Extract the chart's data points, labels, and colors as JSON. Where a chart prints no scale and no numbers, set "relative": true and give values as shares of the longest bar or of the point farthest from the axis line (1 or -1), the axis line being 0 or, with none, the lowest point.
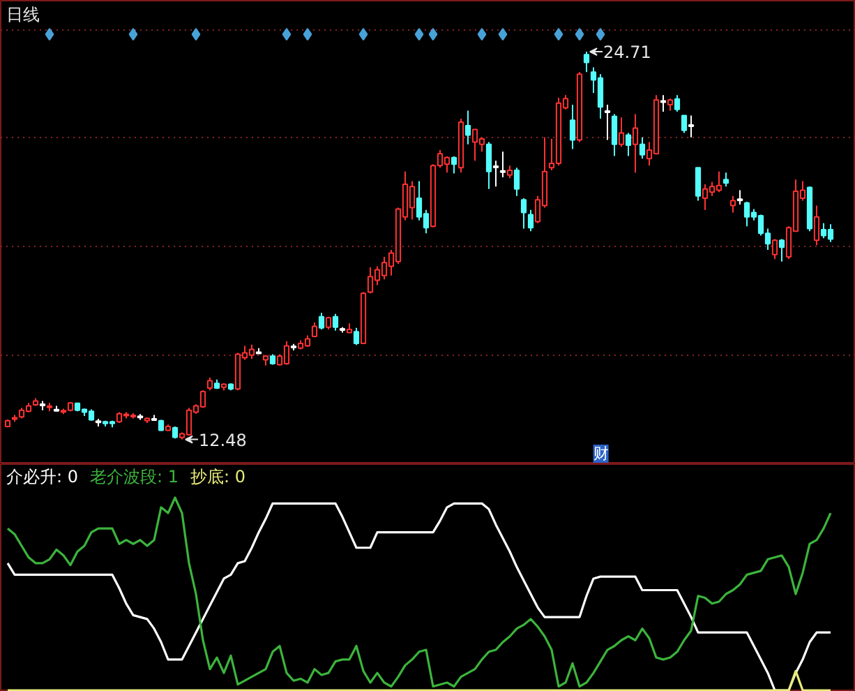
{
  "chart_data": [
    {
      "type": "candlestick",
      "title": "日线",
      "categories": [
        null,
        null,
        null,
        null,
        null,
        null,
        null,
        null,
        null,
        null,
        null,
        null,
        null,
        null,
        null,
        null,
        null,
        null,
        null,
        null,
        null,
        null,
        null,
        null,
        null,
        null,
        null,
        null,
        null,
        null,
        null,
        null,
        null,
        null,
        null,
        null,
        null,
        null,
        null,
        null,
        null,
        null,
        null,
        null,
        null,
        null,
        null,
        null,
        null,
        null,
        null,
        null,
        null,
        null,
        null,
        null,
        null,
        null,
        null,
        null,
        null,
        null,
        null,
        null,
        null,
        null,
        null,
        null,
        null,
        null,
        null,
        null,
        null,
        null,
        null,
        null,
        null,
        null,
        null,
        null,
        null,
        null,
        null,
        null,
        null,
        null,
        null,
        null,
        null,
        null,
        null,
        null,
        null,
        null,
        null,
        null,
        null,
        null,
        null,
        null,
        null,
        null,
        null,
        null,
        null,
        null,
        null,
        null,
        null,
        null,
        null,
        null,
        null,
        null,
        null,
        null,
        null,
        null,
        null
      ],
      "ohlc": [
        [
          12.89,
          13.11,
          12.86,
          13.07
        ],
        [
          13.14,
          13.25,
          13.04,
          13.14
        ],
        [
          13.19,
          13.48,
          13.14,
          13.4
        ],
        [
          13.37,
          13.63,
          13.34,
          13.54
        ],
        [
          13.57,
          13.78,
          13.54,
          13.69
        ],
        [
          13.57,
          13.69,
          13.4,
          13.57
        ],
        [
          13.51,
          13.63,
          13.37,
          13.51
        ],
        [
          13.4,
          13.54,
          13.37,
          13.4
        ],
        [
          13.37,
          13.45,
          13.28,
          13.37
        ],
        [
          13.4,
          13.66,
          13.37,
          13.63
        ],
        [
          13.62,
          13.63,
          13.37,
          13.4
        ],
        [
          13.43,
          13.45,
          13.22,
          13.34
        ],
        [
          13.37,
          13.43,
          13.07,
          13.1
        ],
        [
          13.04,
          13.13,
          12.89,
          13.04
        ],
        [
          13.04,
          13.07,
          12.89,
          12.98
        ],
        [
          13.04,
          13.07,
          12.86,
          12.98
        ],
        [
          13.04,
          13.34,
          13.0,
          13.29
        ],
        [
          13.25,
          13.34,
          13.14,
          13.25
        ],
        [
          13.22,
          13.31,
          13.14,
          13.22
        ],
        [
          13.19,
          13.28,
          13.1,
          13.19
        ],
        [
          13.07,
          13.17,
          13.0,
          13.14
        ],
        [
          13.11,
          13.25,
          13.1,
          13.11
        ],
        [
          13.07,
          13.1,
          12.75,
          12.77
        ],
        [
          12.77,
          12.95,
          12.75,
          12.89
        ],
        [
          12.85,
          12.89,
          12.51,
          12.55
        ],
        [
          12.54,
          12.7,
          12.48,
          12.66
        ],
        [
          12.63,
          13.48,
          12.6,
          13.4
        ],
        [
          13.34,
          13.59,
          13.29,
          13.54
        ],
        [
          13.51,
          14.03,
          13.48,
          13.99
        ],
        [
          14.1,
          14.43,
          14.03,
          14.33
        ],
        [
          14.25,
          14.37,
          14.07,
          14.1
        ],
        [
          14.13,
          14.25,
          14.03,
          14.22
        ],
        [
          14.22,
          14.25,
          14.03,
          14.07
        ],
        [
          14.07,
          15.21,
          14.03,
          15.17
        ],
        [
          15.06,
          15.43,
          14.99,
          15.21
        ],
        [
          15.14,
          15.47,
          15.02,
          15.32
        ],
        [
          15.21,
          15.36,
          15.2,
          15.21
        ],
        [
          14.99,
          15.14,
          14.81,
          15.11
        ],
        [
          15.11,
          15.17,
          14.84,
          14.87
        ],
        [
          14.84,
          15.17,
          14.81,
          15.11
        ],
        [
          14.87,
          15.58,
          14.84,
          15.43
        ],
        [
          15.4,
          15.49,
          15.29,
          15.4
        ],
        [
          15.36,
          15.61,
          15.32,
          15.51
        ],
        [
          15.43,
          15.76,
          15.4,
          15.65
        ],
        [
          15.73,
          16.17,
          15.7,
          16.05
        ],
        [
          16.35,
          16.47,
          15.95,
          16.0
        ],
        [
          16.02,
          16.35,
          15.95,
          16.32
        ],
        [
          16.35,
          16.44,
          15.91,
          16.02
        ],
        [
          15.95,
          16.02,
          15.85,
          15.95
        ],
        [
          15.85,
          16.14,
          15.84,
          15.95
        ],
        [
          15.88,
          16.0,
          15.46,
          15.51
        ],
        [
          15.51,
          17.13,
          15.49,
          17.09
        ],
        [
          17.13,
          17.91,
          17.09,
          17.62
        ],
        [
          17.5,
          17.94,
          17.35,
          17.83
        ],
        [
          17.65,
          18.24,
          17.53,
          18.06
        ],
        [
          17.94,
          18.46,
          17.65,
          18.36
        ],
        [
          18.09,
          19.79,
          18.02,
          19.75
        ],
        [
          19.5,
          20.93,
          19.39,
          20.53
        ],
        [
          19.79,
          20.63,
          19.42,
          20.46
        ],
        [
          20.09,
          20.63,
          19.39,
          19.5
        ],
        [
          19.6,
          19.72,
          18.98,
          19.16
        ],
        [
          19.2,
          21.16,
          19.17,
          21.12
        ],
        [
          21.12,
          21.61,
          21.05,
          21.49
        ],
        [
          21.16,
          21.41,
          20.9,
          21.37
        ],
        [
          21.37,
          21.41,
          20.87,
          21.16
        ],
        [
          21.05,
          22.6,
          20.9,
          22.49
        ],
        [
          22.38,
          22.85,
          21.79,
          22.08
        ],
        [
          21.86,
          22.26,
          21.27,
          22.26
        ],
        [
          21.79,
          22.01,
          21.56,
          21.96
        ],
        [
          21.79,
          21.86,
          20.38,
          20.93
        ],
        [
          21.08,
          21.27,
          20.46,
          21.08
        ],
        [
          20.93,
          21.56,
          20.75,
          20.93
        ],
        [
          20.82,
          21.12,
          20.72,
          20.97
        ],
        [
          20.97,
          21.05,
          20.16,
          20.38
        ],
        [
          20.04,
          20.09,
          19.13,
          19.64
        ],
        [
          19.57,
          19.72,
          19.05,
          19.16
        ],
        [
          19.35,
          20.16,
          19.3,
          20.04
        ],
        [
          19.86,
          22.01,
          19.79,
          20.93
        ],
        [
          21.05,
          21.96,
          20.97,
          21.19
        ],
        [
          21.19,
          23.26,
          21.12,
          23.09
        ],
        [
          22.94,
          23.34,
          22.89,
          23.23
        ],
        [
          22.55,
          23.04,
          21.64,
          21.93
        ],
        [
          21.93,
          24.07,
          21.86,
          24.0
        ],
        [
          24.62,
          24.71,
          24.07,
          24.37
        ],
        [
          24.07,
          24.22,
          23.41,
          23.82
        ],
        [
          23.88,
          24.0,
          22.6,
          22.97
        ],
        [
          22.82,
          23.04,
          21.93,
          22.82
        ],
        [
          22.67,
          22.74,
          21.42,
          21.79
        ],
        [
          21.79,
          22.64,
          21.71,
          22.15
        ],
        [
          22.08,
          22.15,
          21.42,
          21.76
        ],
        [
          21.79,
          22.74,
          20.9,
          22.3
        ],
        [
          21.79,
          22.01,
          21.34,
          21.46
        ],
        [
          21.34,
          21.86,
          21.12,
          21.61
        ],
        [
          21.49,
          23.34,
          21.49,
          23.19
        ],
        [
          23.14,
          23.34,
          22.82,
          23.14
        ],
        [
          23.04,
          23.23,
          22.85,
          23.19
        ],
        [
          23.22,
          23.34,
          22.82,
          22.89
        ],
        [
          22.7,
          22.7,
          22.15,
          22.23
        ],
        [
          22.38,
          22.7,
          22.01,
          22.38
        ],
        [
          21.05,
          21.05,
          20.01,
          20.16
        ],
        [
          20.09,
          20.53,
          19.72,
          20.38
        ],
        [
          20.28,
          20.6,
          20.16,
          20.46
        ],
        [
          20.34,
          20.93,
          20.28,
          20.49
        ],
        [
          20.68,
          20.9,
          20.46,
          20.57
        ],
        [
          19.86,
          20.16,
          19.64,
          20.01
        ],
        [
          20.04,
          20.34,
          19.89,
          20.04
        ],
        [
          19.94,
          19.98,
          19.2,
          19.5
        ],
        [
          19.64,
          19.75,
          19.39,
          19.5
        ],
        [
          19.54,
          19.57,
          18.91,
          18.98
        ],
        [
          18.98,
          19.13,
          18.46,
          18.65
        ],
        [
          18.31,
          18.8,
          18.17,
          18.76
        ],
        [
          18.76,
          18.8,
          18.09,
          18.54
        ],
        [
          18.24,
          19.2,
          18.17,
          19.16
        ],
        [
          19.05,
          20.68,
          19.05,
          20.31
        ],
        [
          20.09,
          20.63,
          20.01,
          20.34
        ],
        [
          20.43,
          20.46,
          19.05,
          19.13
        ],
        [
          18.76,
          19.86,
          18.61,
          19.5
        ],
        [
          19.1,
          19.3,
          18.83,
          18.91
        ],
        [
          19.1,
          19.27,
          18.71,
          18.8
        ]
      ],
      "colors": [
        "#ff3232",
        "#ff3232",
        "#ff3232",
        "#ff3232",
        "#ff3232",
        "#ffffff",
        "#ff3232",
        "#ffffff",
        "#ff3232",
        "#ff3232",
        "#54fcfc",
        "#54fcfc",
        "#54fcfc",
        "#ffffff",
        "#54fcfc",
        "#54fcfc",
        "#ff3232",
        "#ff3232",
        "#ff3232",
        "#ffffff",
        "#ff3232",
        "#ffffff",
        "#54fcfc",
        "#ff3232",
        "#54fcfc",
        "#ff3232",
        "#ff3232",
        "#ff3232",
        "#ff3232",
        "#ff3232",
        "#54fcfc",
        "#ff3232",
        "#54fcfc",
        "#ff3232",
        "#ff3232",
        "#ff3232",
        "#ffffff",
        "#ff3232",
        "#54fcfc",
        "#ff3232",
        "#ff3232",
        "#ffffff",
        "#ff3232",
        "#ff3232",
        "#ff3232",
        "#54fcfc",
        "#ff3232",
        "#54fcfc",
        "#ffffff",
        "#ff3232",
        "#54fcfc",
        "#ff3232",
        "#ff3232",
        "#ff3232",
        "#ff3232",
        "#ff3232",
        "#ff3232",
        "#ff3232",
        "#ff3232",
        "#54fcfc",
        "#54fcfc",
        "#ff3232",
        "#ff3232",
        "#ff3232",
        "#54fcfc",
        "#ff3232",
        "#54fcfc",
        "#ff3232",
        "#ff3232",
        "#54fcfc",
        "#ffffff",
        "#ffffff",
        "#ff3232",
        "#54fcfc",
        "#54fcfc",
        "#54fcfc",
        "#ff3232",
        "#ff3232",
        "#ff3232",
        "#ff3232",
        "#ff3232",
        "#54fcfc",
        "#ff3232",
        "#54fcfc",
        "#54fcfc",
        "#54fcfc",
        "#ffffff",
        "#54fcfc",
        "#ff3232",
        "#54fcfc",
        "#ff3232",
        "#54fcfc",
        "#ff3232",
        "#ff3232",
        "#ffffff",
        "#ff3232",
        "#54fcfc",
        "#54fcfc",
        "#ffffff",
        "#54fcfc",
        "#ff3232",
        "#ff3232",
        "#ff3232",
        "#54fcfc",
        "#ff3232",
        "#ffffff",
        "#54fcfc",
        "#54fcfc",
        "#54fcfc",
        "#54fcfc",
        "#ff3232",
        "#54fcfc",
        "#ff3232",
        "#ff3232",
        "#ff3232",
        "#54fcfc",
        "#ff3232",
        "#54fcfc",
        "#54fcfc"
      ],
      "series": [
        {
          "type": "scatter",
          "color": "#48a2d8",
          "values": [
            null,
            null,
            null,
            null,
            null,
            null,
            25.26,
            null,
            null,
            null,
            null,
            null,
            null,
            null,
            null,
            null,
            null,
            null,
            25.26,
            null,
            null,
            null,
            null,
            null,
            null,
            null,
            null,
            25.26,
            null,
            null,
            null,
            null,
            null,
            null,
            null,
            null,
            null,
            null,
            null,
            null,
            25.26,
            null,
            null,
            25.26,
            null,
            null,
            null,
            null,
            null,
            null,
            null,
            25.26,
            null,
            null,
            null,
            null,
            null,
            null,
            null,
            25.26,
            null,
            25.26,
            null,
            null,
            null,
            null,
            null,
            null,
            25.26,
            null,
            null,
            25.26,
            null,
            null,
            null,
            null,
            null,
            null,
            null,
            25.26,
            null,
            null,
            25.26,
            null,
            null,
            25.26,
            null,
            null,
            null,
            null,
            null,
            null,
            null,
            null,
            null,
            null,
            null,
            null,
            null,
            null,
            null,
            null,
            null,
            null,
            null,
            null,
            null,
            null,
            null,
            null,
            null,
            null,
            null,
            null,
            null,
            null,
            null,
            null,
            null
          ]
        }
      ],
      "marker": "diamond",
      "annotations": [
        "24.71",
        "12.48",
        "财"
      ],
      "ylim": [
        11.7,
        26.32
      ],
      "yticks": [
        {
          "value": 15.14,
          "label": null
        },
        {
          "value": 18.56,
          "label": null
        },
        {
          "value": 22.01,
          "label": null
        },
        {
          "value": 25.4,
          "label": null
        }
      ],
      "grid": "y",
      "tick_labels": false
    },
    {
      "type": "line",
      "relative": true,
      "categories": [
        null,
        null,
        null,
        null,
        null,
        null,
        null,
        null,
        null,
        null,
        null,
        null,
        null,
        null,
        null,
        null,
        null,
        null,
        null,
        null,
        null,
        null,
        null,
        null,
        null,
        null,
        null,
        null,
        null,
        null,
        null,
        null,
        null,
        null,
        null,
        null,
        null,
        null,
        null,
        null,
        null,
        null,
        null,
        null,
        null,
        null,
        null,
        null,
        null,
        null,
        null,
        null,
        null,
        null,
        null,
        null,
        null,
        null,
        null,
        null,
        null,
        null,
        null,
        null,
        null,
        null,
        null,
        null,
        null,
        null,
        null,
        null,
        null,
        null,
        null,
        null,
        null,
        null,
        null,
        null,
        null,
        null,
        null,
        null,
        null,
        null,
        null,
        null,
        null,
        null,
        null,
        null,
        null,
        null,
        null,
        null,
        null,
        null,
        null,
        null,
        null,
        null,
        null,
        null,
        null,
        null,
        null,
        null,
        null,
        null,
        null,
        null,
        null,
        null,
        null,
        null,
        null,
        null,
        null
      ],
      "series": [
        {
          "name": "介必升: 0",
          "color": "#ffffff",
          "values": [
            0.66,
            0.6,
            0.6,
            0.6,
            0.6,
            0.6,
            0.6,
            0.6,
            0.6,
            0.6,
            0.6,
            0.6,
            0.6,
            0.6,
            0.6,
            0.6,
            0.53,
            0.45,
            0.39,
            0.38,
            0.37,
            0.32,
            0.25,
            0.16,
            0.16,
            0.16,
            0.23,
            0.3,
            0.37,
            0.44,
            0.51,
            0.58,
            0.6,
            0.66,
            0.67,
            0.74,
            0.82,
            0.89,
            0.97,
            0.97,
            0.97,
            0.97,
            0.97,
            0.97,
            0.97,
            0.97,
            0.97,
            0.97,
            0.9,
            0.82,
            0.74,
            0.74,
            0.74,
            0.82,
            0.82,
            0.82,
            0.82,
            0.82,
            0.82,
            0.82,
            0.82,
            0.82,
            0.88,
            0.95,
            0.97,
            0.97,
            0.97,
            0.97,
            0.97,
            0.94,
            0.86,
            0.79,
            0.72,
            0.64,
            0.57,
            0.5,
            0.43,
            0.38,
            0.38,
            0.38,
            0.38,
            0.38,
            0.38,
            0.49,
            0.58,
            0.59,
            0.59,
            0.59,
            0.59,
            0.59,
            0.59,
            0.52,
            0.52,
            0.52,
            0.52,
            0.52,
            0.52,
            0.45,
            0.38,
            0.3,
            0.3,
            0.3,
            0.3,
            0.3,
            0.3,
            0.3,
            0.3,
            0.23,
            0.16,
            0.09,
            0,
            0,
            0,
            0.09,
            0.16,
            0.25,
            0.3,
            0.3,
            0.3
          ]
        },
        {
          "name": "老介波段: 1",
          "color": "#3cb43c",
          "values": [
            0.84,
            0.81,
            0.75,
            0.69,
            0.66,
            0.66,
            0.68,
            0.73,
            0.7,
            0.65,
            0.72,
            0.75,
            0.82,
            0.84,
            0.84,
            0.84,
            0.76,
            0.78,
            0.76,
            0.78,
            0.75,
            0.78,
            0.95,
            0.92,
            1,
            0.92,
            0.66,
            0.5,
            0.26,
            0.11,
            0.17,
            0.09,
            0.18,
            0.03,
            0.05,
            0.07,
            0.09,
            0.11,
            0.2,
            0.23,
            0.09,
            0.05,
            0.06,
            0.04,
            0.11,
            0.08,
            0.09,
            0.15,
            0.16,
            0.16,
            0.23,
            0.1,
            0.04,
            0.09,
            0.04,
            0.02,
            0.07,
            0.13,
            0.16,
            0.2,
            0.21,
            0.02,
            0.03,
            0.04,
            0.02,
            0.07,
            0.09,
            0.11,
            0.16,
            0.2,
            0.21,
            0.25,
            0.28,
            0.32,
            0.34,
            0.37,
            0.33,
            0.28,
            0.21,
            0.02,
            0.04,
            0.14,
            0.02,
            0.04,
            0.09,
            0.15,
            0.21,
            0.23,
            0.26,
            0.28,
            0.26,
            0.32,
            0.27,
            0.17,
            0.16,
            0.17,
            0.2,
            0.26,
            0.31,
            0.49,
            0.48,
            0.45,
            0.46,
            0.5,
            0.52,
            0.55,
            0.6,
            0.61,
            0.62,
            0.68,
            0.69,
            0.7,
            0.64,
            0.5,
            0.61,
            0.76,
            0.78,
            0.84,
            0.92
          ]
        },
        {
          "name": "抄底: 0",
          "color": "#e8ec78",
          "values": [
            0,
            0,
            0,
            0,
            0,
            0,
            0,
            0,
            0,
            0,
            0,
            0,
            0,
            0,
            0,
            0,
            0,
            0,
            0,
            0,
            0,
            0,
            0,
            0,
            0,
            0,
            0,
            0,
            0,
            0,
            0,
            0,
            0,
            0,
            0,
            0,
            0,
            0,
            0,
            0,
            0,
            0,
            0,
            0,
            0,
            0,
            0,
            0,
            0,
            0,
            0,
            0,
            0,
            0,
            0,
            0,
            0,
            0,
            0,
            0,
            0,
            0,
            0,
            0,
            0,
            0,
            0,
            0,
            0,
            0,
            0,
            0,
            0,
            0,
            0,
            0,
            0,
            0,
            0,
            0,
            0,
            0,
            0,
            0,
            0,
            0,
            0,
            0,
            0,
            0,
            0,
            0,
            0,
            0,
            0,
            0,
            0,
            0,
            0,
            0,
            0,
            0,
            0,
            0,
            0,
            0,
            0,
            0,
            0,
            0,
            0,
            0,
            0,
            0.1,
            0,
            0,
            0,
            0,
            0
          ]
        }
      ],
      "legend": "top left",
      "tick_labels": false
    }
  ]
}
